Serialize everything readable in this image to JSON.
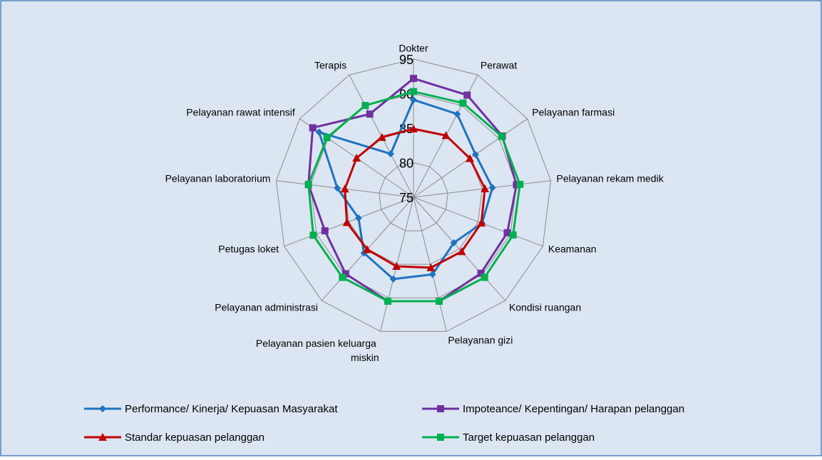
{
  "chart_data": {
    "type": "radar",
    "categories": [
      "Dokter",
      "Perawat",
      "Pelayanan farmasi",
      "Pelayanan rekam medik",
      "Keamanan",
      "Kondisi ruangan",
      "Pelayanan gizi",
      "Pelayanan pasien keluarga miskin",
      "Pelayanan administrasi",
      "Petugas loket",
      "Pelayanan laboratorium",
      "Pelayanan rawat intensif",
      "Terapis"
    ],
    "series": [
      {
        "name": "Performance/ Kinerja/ Kepuasan Masyarakat",
        "color": "#1f72c0",
        "marker": "diamond",
        "values": [
          89.1,
          88.6,
          85.9,
          86.5,
          85.6,
          83.8,
          86.5,
          87.2,
          85.8,
          83.5,
          86.1,
          91.6,
          82.1
        ]
      },
      {
        "name": "Impoteance/ Kepentingan/ Harapan pelanggan",
        "color": "#7030a0",
        "marker": "square",
        "values": [
          92.2,
          91.7,
          90.6,
          90.0,
          89.5,
          89.7,
          90.5,
          90.5,
          89.8,
          88.7,
          90.3,
          92.7,
          88.6
        ]
      },
      {
        "name": "Standar kepuasan pelanggan",
        "color": "#c00000",
        "marker": "triangle",
        "values": [
          84.9,
          85.1,
          84.9,
          85.4,
          85.5,
          85.5,
          85.5,
          85.3,
          85.1,
          85.3,
          85.0,
          85.0,
          84.8
        ]
      },
      {
        "name": "Target kepuasan pelanggan",
        "color": "#00b050",
        "marker": "square",
        "values": [
          90.3,
          90.4,
          90.5,
          90.5,
          90.4,
          90.5,
          90.5,
          90.5,
          90.5,
          90.5,
          90.3,
          90.2,
          90.0
        ]
      }
    ],
    "ylim": [
      75,
      95
    ],
    "yticks": [
      75,
      80,
      85,
      90,
      95
    ],
    "grid": true,
    "legend": "bottom"
  }
}
